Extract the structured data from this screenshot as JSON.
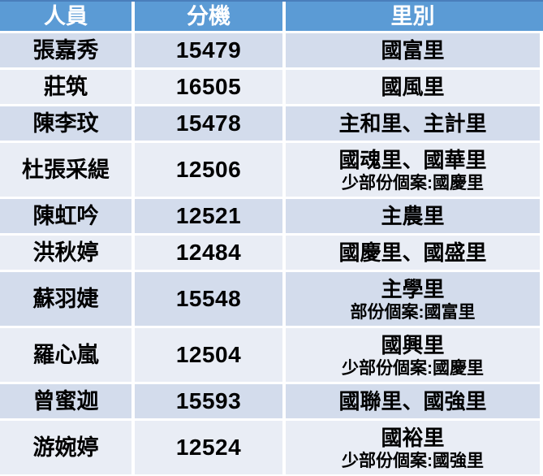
{
  "table": {
    "columns": [
      {
        "key": "person",
        "label": "人員"
      },
      {
        "key": "extension",
        "label": "分機"
      },
      {
        "key": "district",
        "label": "里別"
      }
    ],
    "rows": [
      {
        "person": "張嘉秀",
        "extension": "15479",
        "district": "國富里",
        "note": ""
      },
      {
        "person": "莊筑",
        "extension": "16505",
        "district": "國風里",
        "note": ""
      },
      {
        "person": "陳李玟",
        "extension": "15478",
        "district": "主和里、主計里",
        "note": ""
      },
      {
        "person": "杜張采緹",
        "extension": "12506",
        "district": "國魂里、國華里",
        "note": "少部份個案:國慶里"
      },
      {
        "person": "陳虹吟",
        "extension": "12521",
        "district": "主農里",
        "note": ""
      },
      {
        "person": "洪秋婷",
        "extension": "12484",
        "district": "國慶里、國盛里",
        "note": ""
      },
      {
        "person": "蘇羽婕",
        "extension": "15548",
        "district": "主學里",
        "note": "部份個案:國富里"
      },
      {
        "person": "羅心嵐",
        "extension": "12504",
        "district": "國興里",
        "note": "少部份個案:國慶里"
      },
      {
        "person": "曾蜜迦",
        "extension": "15593",
        "district": "國聯里、國強里",
        "note": ""
      },
      {
        "person": "游婉婷",
        "extension": "12524",
        "district": "國裕里",
        "note": "少部份個案:國強里"
      }
    ],
    "colors": {
      "header_bg": "#5B9BD5",
      "header_top_border": "#4A7EBB",
      "header_text": "#FFFFFF",
      "row_odd_bg": "#D3DCEC",
      "row_even_bg": "#E9EDF5",
      "divider": "#FFFFFF",
      "body_text": "#000000"
    }
  }
}
